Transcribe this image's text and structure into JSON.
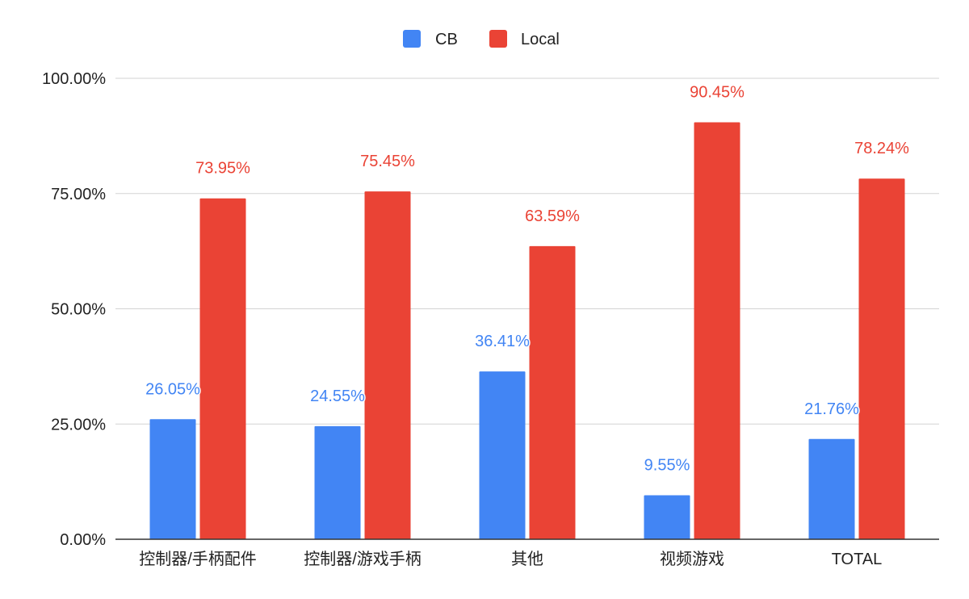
{
  "chart_data": {
    "type": "bar",
    "categories": [
      "控制器/手柄配件",
      "控制器/游戏手柄",
      "其他",
      "视频游戏",
      "TOTAL"
    ],
    "series": [
      {
        "name": "CB",
        "color": "#4285F4",
        "values": [
          26.05,
          24.55,
          36.41,
          9.55,
          21.76
        ],
        "labels": [
          "26.05%",
          "24.55%",
          "36.41%",
          "9.55%",
          "21.76%"
        ]
      },
      {
        "name": "Local",
        "color": "#EA4335",
        "values": [
          73.95,
          75.45,
          63.59,
          90.45,
          78.24
        ],
        "labels": [
          "73.95%",
          "75.45%",
          "63.59%",
          "90.45%",
          "78.24%"
        ]
      }
    ],
    "yticks": [
      "0.00%",
      "25.00%",
      "50.00%",
      "75.00%",
      "100.00%"
    ],
    "ytick_values": [
      0,
      25,
      50,
      75,
      100
    ],
    "ylim": [
      0,
      100
    ],
    "title": "",
    "xlabel": "",
    "ylabel": "",
    "grid": true,
    "legend_position": "top"
  }
}
